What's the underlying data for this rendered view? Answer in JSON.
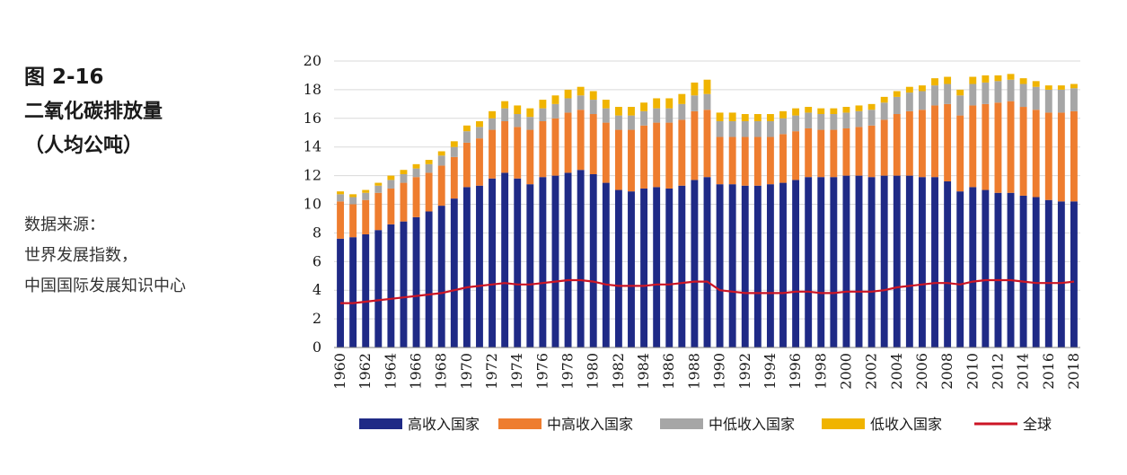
{
  "side_text": {
    "figure_number": "图 2-16",
    "title_line1": "二氧化碳排放量",
    "title_line2": "（人均公吨）",
    "source_line1": "数据来源：",
    "source_line2": "世界发展指数，",
    "source_line3": "中国国际发展知识中心"
  },
  "chart_data": {
    "type": "bar",
    "stacked": true,
    "x": [
      1960,
      1961,
      1962,
      1963,
      1964,
      1965,
      1966,
      1967,
      1968,
      1969,
      1970,
      1971,
      1972,
      1973,
      1974,
      1975,
      1976,
      1977,
      1978,
      1979,
      1980,
      1981,
      1982,
      1983,
      1984,
      1985,
      1986,
      1987,
      1988,
      1989,
      1990,
      1991,
      1992,
      1993,
      1994,
      1995,
      1996,
      1997,
      1998,
      1999,
      2000,
      2001,
      2002,
      2003,
      2004,
      2005,
      2006,
      2007,
      2008,
      2009,
      2010,
      2011,
      2012,
      2013,
      2014,
      2015,
      2016,
      2017,
      2018
    ],
    "x_tick_labels": [
      "1960",
      "1962",
      "1964",
      "1966",
      "1968",
      "1970",
      "1972",
      "1974",
      "1976",
      "1978",
      "1980",
      "1982",
      "1984",
      "1986",
      "1988",
      "1990",
      "1992",
      "1994",
      "1996",
      "1998",
      "2000",
      "2002",
      "2004",
      "2006",
      "2008",
      "2010",
      "2012",
      "2014",
      "2016",
      "2018"
    ],
    "y_tick_labels": [
      "0",
      "2",
      "4",
      "6",
      "8",
      "10",
      "12",
      "14",
      "16",
      "18",
      "20"
    ],
    "ylim": [
      0,
      20
    ],
    "series": [
      {
        "name": "高收入国家",
        "color": "#1f2a86",
        "values": [
          7.6,
          7.7,
          7.9,
          8.2,
          8.6,
          8.8,
          9.1,
          9.5,
          9.9,
          10.4,
          11.2,
          11.3,
          11.8,
          12.2,
          11.8,
          11.4,
          11.9,
          12.0,
          12.2,
          12.4,
          12.1,
          11.5,
          11.0,
          10.9,
          11.1,
          11.2,
          11.1,
          11.3,
          11.7,
          11.9,
          11.4,
          11.4,
          11.3,
          11.3,
          11.4,
          11.5,
          11.7,
          11.9,
          11.9,
          11.9,
          12.0,
          12.0,
          11.9,
          12.0,
          12.0,
          12.0,
          11.9,
          11.9,
          11.6,
          10.9,
          11.2,
          11.0,
          10.8,
          10.8,
          10.6,
          10.5,
          10.3,
          10.2,
          10.2
        ]
      },
      {
        "name": "中高收入国家",
        "color": "#ee7d2f",
        "values": [
          2.6,
          2.3,
          2.4,
          2.6,
          2.5,
          2.7,
          2.8,
          2.7,
          2.8,
          2.9,
          3.1,
          3.3,
          3.4,
          3.6,
          3.6,
          3.8,
          3.9,
          4.0,
          4.2,
          4.2,
          4.2,
          4.2,
          4.2,
          4.3,
          4.4,
          4.5,
          4.6,
          4.6,
          4.8,
          4.7,
          3.3,
          3.3,
          3.4,
          3.4,
          3.3,
          3.4,
          3.4,
          3.4,
          3.3,
          3.3,
          3.3,
          3.4,
          3.6,
          3.9,
          4.3,
          4.5,
          4.7,
          5.0,
          5.4,
          5.3,
          5.7,
          6.0,
          6.3,
          6.4,
          6.2,
          6.1,
          6.1,
          6.2,
          6.3
        ]
      },
      {
        "name": "中低收入国家",
        "color": "#a6a6a6",
        "values": [
          0.5,
          0.5,
          0.5,
          0.5,
          0.6,
          0.6,
          0.6,
          0.6,
          0.7,
          0.7,
          0.8,
          0.8,
          0.8,
          0.9,
          0.9,
          0.9,
          0.9,
          1.0,
          1.0,
          1.0,
          1.0,
          1.0,
          1.0,
          1.0,
          1.0,
          1.0,
          1.0,
          1.1,
          1.1,
          1.1,
          1.1,
          1.1,
          1.1,
          1.1,
          1.1,
          1.1,
          1.1,
          1.1,
          1.1,
          1.1,
          1.1,
          1.1,
          1.1,
          1.2,
          1.2,
          1.3,
          1.3,
          1.4,
          1.4,
          1.4,
          1.5,
          1.5,
          1.5,
          1.5,
          1.6,
          1.6,
          1.6,
          1.6,
          1.6
        ]
      },
      {
        "name": "低收入国家",
        "color": "#f0b400",
        "values": [
          0.2,
          0.2,
          0.2,
          0.2,
          0.3,
          0.3,
          0.3,
          0.3,
          0.3,
          0.4,
          0.4,
          0.4,
          0.5,
          0.5,
          0.6,
          0.6,
          0.6,
          0.6,
          0.6,
          0.6,
          0.6,
          0.6,
          0.6,
          0.6,
          0.6,
          0.7,
          0.7,
          0.7,
          0.9,
          1.0,
          0.6,
          0.6,
          0.5,
          0.5,
          0.5,
          0.5,
          0.5,
          0.4,
          0.4,
          0.4,
          0.4,
          0.4,
          0.4,
          0.4,
          0.4,
          0.4,
          0.4,
          0.5,
          0.5,
          0.4,
          0.5,
          0.5,
          0.4,
          0.4,
          0.4,
          0.4,
          0.3,
          0.3,
          0.3
        ]
      },
      {
        "name": "全球",
        "type": "line",
        "color": "#cc1525",
        "values": [
          3.1,
          3.1,
          3.2,
          3.3,
          3.4,
          3.5,
          3.6,
          3.7,
          3.8,
          4.0,
          4.2,
          4.3,
          4.4,
          4.5,
          4.4,
          4.4,
          4.5,
          4.6,
          4.7,
          4.7,
          4.6,
          4.4,
          4.3,
          4.3,
          4.3,
          4.4,
          4.4,
          4.5,
          4.6,
          4.6,
          4.0,
          3.9,
          3.8,
          3.8,
          3.8,
          3.8,
          3.9,
          3.9,
          3.8,
          3.8,
          3.9,
          3.9,
          3.9,
          4.0,
          4.2,
          4.3,
          4.4,
          4.5,
          4.5,
          4.4,
          4.6,
          4.7,
          4.7,
          4.7,
          4.6,
          4.5,
          4.5,
          4.5,
          4.6
        ]
      }
    ],
    "legend_position": "bottom",
    "grid": "horizontal"
  }
}
